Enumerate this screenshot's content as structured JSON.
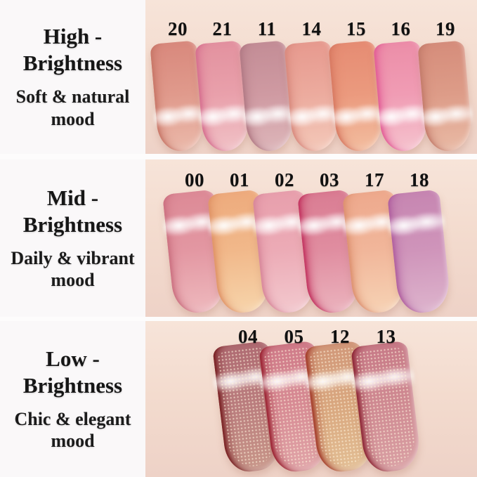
{
  "rows": [
    {
      "id": "high",
      "title_l1": "High -",
      "title_l2": "Brightness",
      "subtitle_l1": "Soft & natural",
      "subtitle_l2": "mood",
      "finish": "gloss",
      "swatches": [
        {
          "number": "20",
          "top": "#d98a7e",
          "mid": "#e09a8c",
          "bottom": "#eab7a8",
          "edge": "#c87768"
        },
        {
          "number": "21",
          "top": "#e393a0",
          "mid": "#e9a0ab",
          "bottom": "#f0bfc4",
          "edge": "#d66f8f"
        },
        {
          "number": "11",
          "top": "#c48e97",
          "mid": "#cf9aa2",
          "bottom": "#dcb4b8",
          "edge": "#b27a85"
        },
        {
          "number": "14",
          "top": "#e79b90",
          "mid": "#ecab9e",
          "bottom": "#f3c6b7",
          "edge": "#d98a7e"
        },
        {
          "number": "15",
          "top": "#e68d74",
          "mid": "#eb9a7e",
          "bottom": "#f2bb9d",
          "edge": "#d87a62"
        },
        {
          "number": "16",
          "top": "#ec8fa9",
          "mid": "#f09cb4",
          "bottom": "#f5c0cc",
          "edge": "#e25d96"
        },
        {
          "number": "19",
          "top": "#d68e7c",
          "mid": "#dd9c88",
          "bottom": "#e8b8a3",
          "edge": "#c47c6b"
        }
      ]
    },
    {
      "id": "mid",
      "title_l1": "Mid -",
      "title_l2": "Brightness",
      "subtitle_l1": "Daily & vibrant",
      "subtitle_l2": "mood",
      "finish": "gloss",
      "swatches": [
        {
          "number": "00",
          "top": "#dd8b97",
          "mid": "#e397a2",
          "bottom": "#edb6bb",
          "edge": "#cc7181"
        },
        {
          "number": "01",
          "top": "#eeac7e",
          "mid": "#f1b88a",
          "bottom": "#f6d2a8",
          "edge": "#e09467"
        },
        {
          "number": "02",
          "top": "#e8a0ad",
          "mid": "#ecabb6",
          "bottom": "#f2c6cc",
          "edge": "#d8879a"
        },
        {
          "number": "03",
          "top": "#da7e94",
          "mid": "#e08da0",
          "bottom": "#eab0bb",
          "edge": "#c2335f"
        },
        {
          "number": "17",
          "top": "#eeaa8e",
          "mid": "#f1b69a",
          "bottom": "#f6d0b2",
          "edge": "#dd9170"
        },
        {
          "number": "18",
          "top": "#c787b2",
          "mid": "#cf94ba",
          "bottom": "#dcb1cb",
          "edge": "#b05f9f"
        }
      ]
    },
    {
      "id": "low",
      "title_l1": "Low -",
      "title_l2": "Brightness",
      "subtitle_l1": "Chic & elegant",
      "subtitle_l2": "mood",
      "finish": "shimmer",
      "swatches": [
        {
          "number": "04",
          "top": "#b06c73",
          "mid": "#ba7d7e",
          "bottom": "#c79488",
          "edge": "#771e20"
        },
        {
          "number": "05",
          "top": "#d07c8a",
          "mid": "#d78b94",
          "bottom": "#e0a3a7",
          "edge": "#99202f"
        },
        {
          "number": "12",
          "top": "#d2997a",
          "mid": "#d9a77f",
          "bottom": "#e2bd93",
          "edge": "#a23a28"
        },
        {
          "number": "13",
          "top": "#c87b88",
          "mid": "#cf8a92",
          "bottom": "#d99fa3",
          "edge": "#8c2433"
        }
      ]
    }
  ]
}
